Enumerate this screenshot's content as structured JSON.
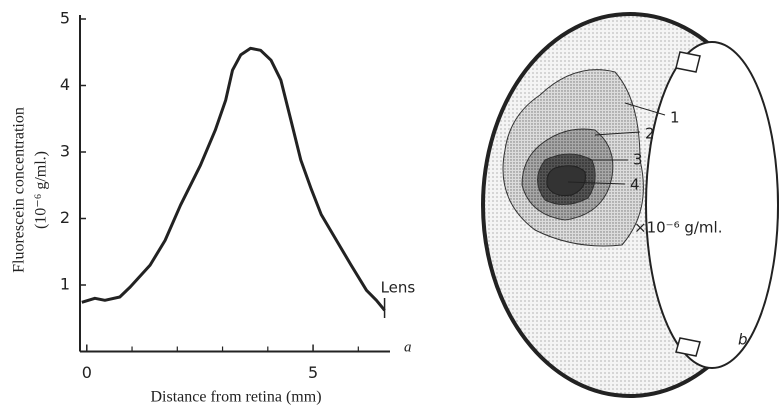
{
  "chart_data": {
    "type": "line",
    "ylabel": "Fluorescein concentration",
    "ylabel_unit": "(10⁻⁶ g/ml.)",
    "xlabel": "Distance from retina (mm)",
    "annotation": "Lens",
    "panel_label": "a",
    "color": "#222222",
    "x": [
      -0.11,
      0.18,
      0.4,
      0.73,
      0.96,
      1.4,
      1.73,
      2.07,
      2.51,
      2.84,
      3.07,
      3.22,
      3.4,
      3.62,
      3.84,
      4.07,
      4.29,
      4.51,
      4.73,
      4.96,
      5.18,
      5.51,
      5.84,
      6.18,
      6.4,
      6.58
    ],
    "values": [
      0.74,
      0.8,
      0.77,
      0.82,
      0.97,
      1.3,
      1.67,
      2.2,
      2.8,
      3.33,
      3.78,
      4.23,
      4.46,
      4.56,
      4.53,
      4.38,
      4.08,
      3.48,
      2.88,
      2.44,
      2.06,
      1.68,
      1.3,
      0.92,
      0.77,
      0.62
    ],
    "xlim": [
      -0.15,
      6.7
    ],
    "ylim": [
      0,
      5
    ],
    "xticks": [
      0,
      5
    ],
    "x_minor_ticks": [
      1,
      2,
      3,
      4,
      6
    ],
    "yticks": [
      1,
      2,
      3,
      4,
      5
    ],
    "annotation_x": 6.58
  },
  "diagram": {
    "contour_labels": [
      "1",
      "2",
      "3",
      "4"
    ],
    "unit_label": "×10⁻⁶ g/ml.",
    "panel_label": "b"
  }
}
